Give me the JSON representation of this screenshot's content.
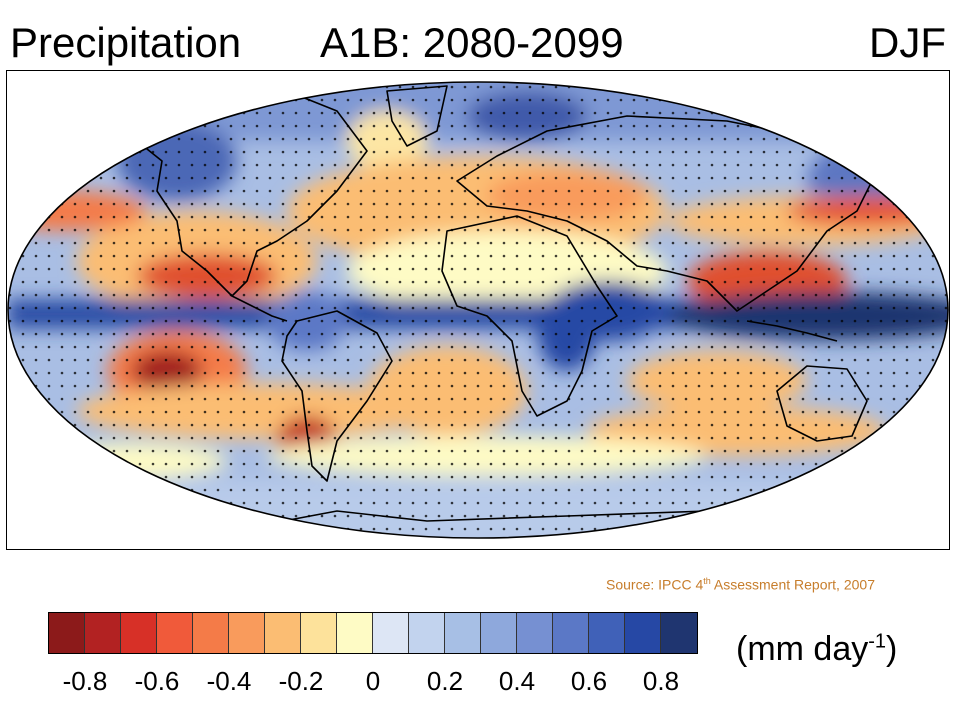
{
  "header": {
    "variable": "Precipitation",
    "scenario": "A1B: 2080-2099",
    "season": "DJF"
  },
  "map": {
    "projection": "robinson",
    "stippling": true,
    "coastlines": true
  },
  "source": {
    "prefix": "Source:  IPCC 4",
    "superscript": "th",
    "suffix": " Assessment Report, 2007"
  },
  "legend": {
    "colors": [
      "#8c1a1a",
      "#b22222",
      "#d73027",
      "#f05a3a",
      "#f47b48",
      "#f99b5c",
      "#fbbd73",
      "#fde29b",
      "#fefbc5",
      "#dde6f5",
      "#c2d3ee",
      "#a7bfe5",
      "#8ea8dc",
      "#7690d2",
      "#5b78c6",
      "#4061b8",
      "#2648a5",
      "#1f3570"
    ],
    "ticks": [
      "-0.8",
      "-0.6",
      "-0.4",
      "-0.2",
      "0",
      "0.2",
      "0.4",
      "0.6",
      "0.8"
    ],
    "units_text": "(mm day",
    "units_sup": "-1",
    "units_close": ")"
  }
}
